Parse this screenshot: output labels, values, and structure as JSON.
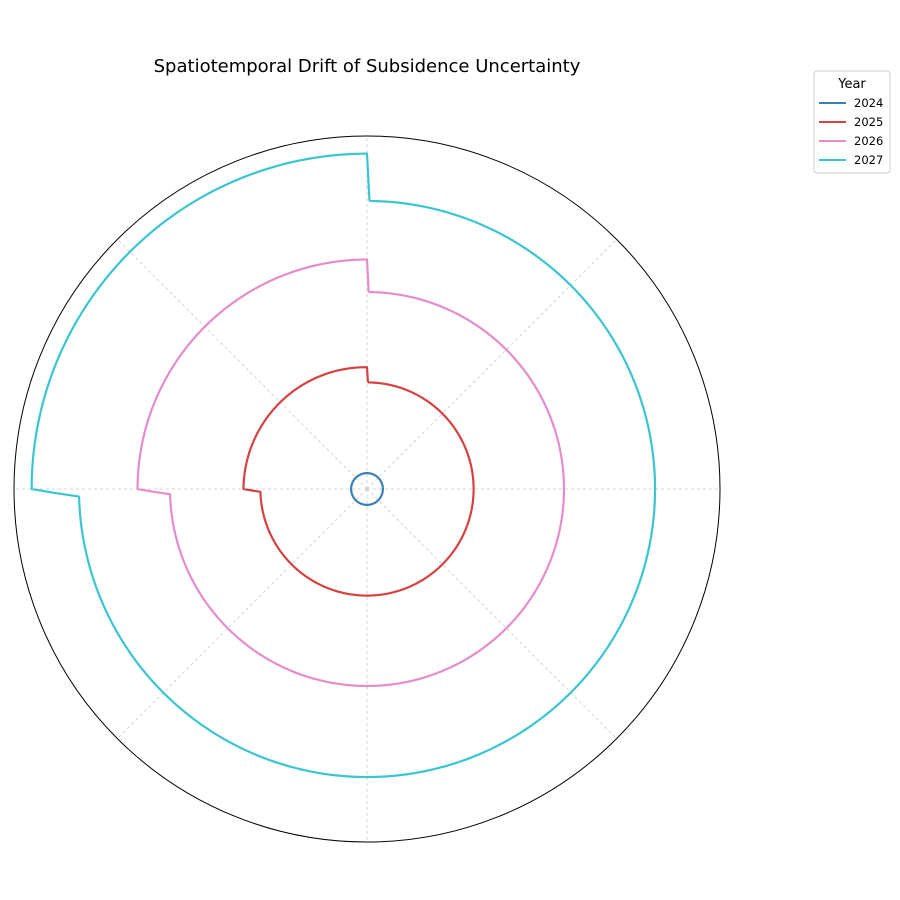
{
  "chart_data": {
    "type": "line",
    "projection": "polar",
    "title": "Spatiotemporal Drift of Subsidence Uncertainty",
    "legend": {
      "title": "Year",
      "placement": "top-right"
    },
    "grid": true,
    "theta_zero": "north",
    "theta_direction": "clockwise",
    "r_max": 1.0,
    "angle_gridlines_deg": [
      0,
      45,
      90,
      135,
      180,
      225,
      270,
      315
    ],
    "series": [
      {
        "name": "2024",
        "color": "#3a7fb8",
        "points": [
          [
            0,
            0.045
          ],
          [
            90,
            0.045
          ],
          [
            180,
            0.045
          ],
          [
            270,
            0.045
          ],
          [
            360,
            0.045
          ]
        ]
      },
      {
        "name": "2025",
        "color": "#d44242",
        "points": [
          [
            0.5,
            0.302
          ],
          [
            90,
            0.302
          ],
          [
            180,
            0.302
          ],
          [
            268.5,
            0.302
          ],
          [
            270,
            0.35
          ],
          [
            360,
            0.345
          ],
          [
            0.5,
            0.302
          ]
        ]
      },
      {
        "name": "2026",
        "color": "#e58ccc",
        "points": [
          [
            0.5,
            0.558
          ],
          [
            90,
            0.558
          ],
          [
            180,
            0.558
          ],
          [
            268.5,
            0.558
          ],
          [
            270,
            0.65
          ],
          [
            360,
            0.65
          ],
          [
            0.5,
            0.558
          ]
        ]
      },
      {
        "name": "2027",
        "color": "#3ac5d0",
        "points": [
          [
            0.5,
            0.816
          ],
          [
            90,
            0.816
          ],
          [
            180,
            0.816
          ],
          [
            268.5,
            0.816
          ],
          [
            270,
            0.95
          ],
          [
            360,
            0.95
          ],
          [
            0.5,
            0.816
          ]
        ]
      }
    ]
  }
}
